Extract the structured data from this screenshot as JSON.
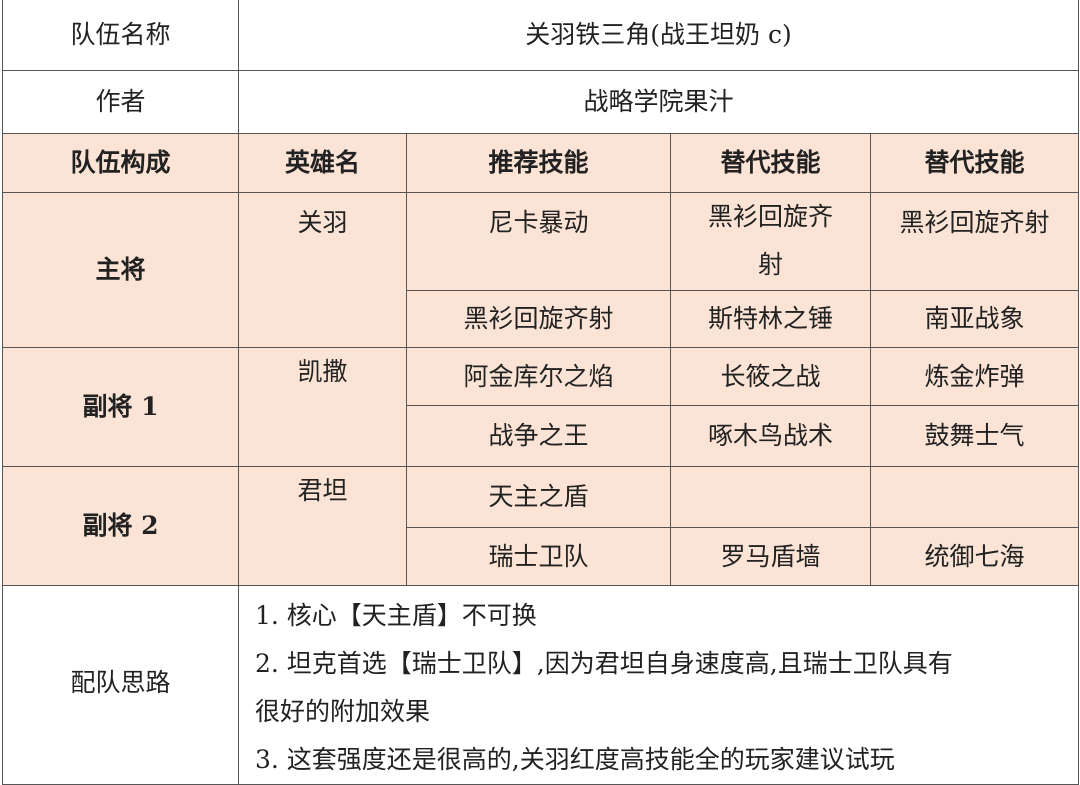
{
  "team_name": {
    "label": "队伍名称",
    "value": "关羽铁三角(战王坦奶 c)"
  },
  "author": {
    "label": "作者",
    "value": "战略学院果汁"
  },
  "headers": [
    "队伍构成",
    "英雄名",
    "推荐技能",
    "替代技能",
    "替代技能"
  ],
  "roles": [
    {
      "role": "主将",
      "hero": "关羽",
      "skills": [
        [
          "尼卡暴动",
          "黑衫回旋齐射",
          "黑衫回旋齐射"
        ],
        [
          "黑衫回旋齐射",
          "斯特林之锤",
          "南亚战象"
        ]
      ]
    },
    {
      "role": "副将 1",
      "hero": "凯撒",
      "skills": [
        [
          "阿金库尔之焰",
          "长筱之战",
          "炼金炸弹"
        ],
        [
          "战争之王",
          "啄木鸟战术",
          "鼓舞士气"
        ]
      ]
    },
    {
      "role": "副将 2",
      "hero": "君坦",
      "skills": [
        [
          "天主之盾",
          "",
          ""
        ],
        [
          "瑞士卫队",
          "罗马盾墙",
          "统御七海"
        ]
      ]
    }
  ],
  "strategy": {
    "label": "配队思路",
    "lines": [
      "1.  核心【天主盾】不可换",
      "2.  坦克首选【瑞士卫队】,因为君坦自身速度高,且瑞士卫队具有",
      "很好的附加效果",
      "3.  这套强度还是很高的,关羽红度高技能全的玩家建议试玩"
    ]
  },
  "colors": {
    "header_bg": "#fbe4d5",
    "border": "#555555"
  }
}
